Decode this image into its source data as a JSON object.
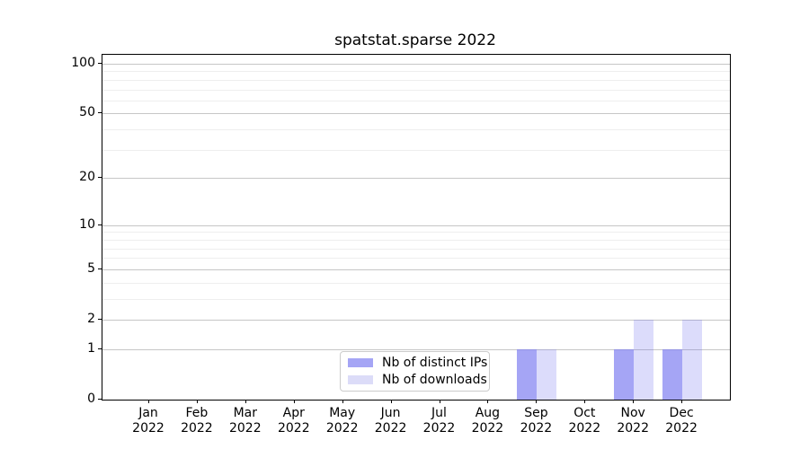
{
  "chart_data": {
    "type": "bar",
    "title": "spatstat.sparse 2022",
    "categories": [
      "Jan",
      "Feb",
      "Mar",
      "Apr",
      "May",
      "Jun",
      "Jul",
      "Aug",
      "Sep",
      "Oct",
      "Nov",
      "Dec"
    ],
    "x_year_label": "2022",
    "series": [
      {
        "name": "Nb of distinct IPs",
        "values": [
          0,
          0,
          0,
          0,
          0,
          0,
          0,
          0,
          1,
          0,
          1,
          1
        ],
        "bar_color": "rgba(121,121,240,0.67)",
        "swatch_color": "#a5a5f5"
      },
      {
        "name": "Nb of downloads",
        "values": [
          0,
          0,
          0,
          0,
          0,
          0,
          0,
          0,
          1,
          0,
          2,
          2
        ],
        "bar_color": "rgba(121,121,240,0.26)",
        "swatch_color": "#dcdcf8"
      }
    ],
    "y_axis": {
      "scale": "log1p",
      "major_ticks": [
        0,
        1,
        2,
        5,
        10,
        20,
        50,
        100
      ],
      "minor_ticks": [
        3,
        4,
        6,
        7,
        8,
        9,
        30,
        40,
        60,
        70,
        80,
        90
      ],
      "range_top_value": 113
    },
    "grid": true,
    "legend_position": "bottom-center"
  },
  "colors": {
    "grid_major": "#c6c6c6",
    "grid_minor": "#eeeeee",
    "spine": "#000000",
    "background": "#ffffff",
    "tick_label": "#000000",
    "legend_border": "#cccccc"
  }
}
